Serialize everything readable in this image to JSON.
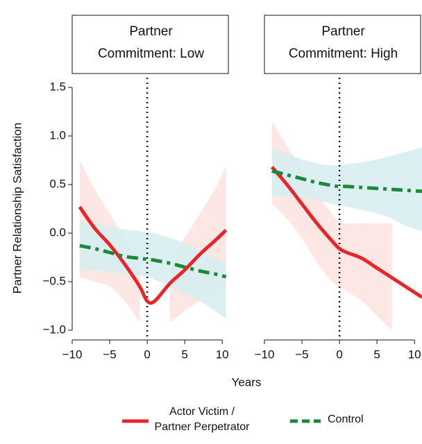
{
  "shared": {
    "y_label": "Partner Relationship Satisfaction",
    "x_label": "Years"
  },
  "chart_data": [
    {
      "type": "line",
      "title": [
        "Partner",
        "Commitment: Low"
      ],
      "xlim": [
        -10,
        11
      ],
      "ylim": [
        -1.1,
        1.6
      ],
      "xticks": [
        {
          "value": -10,
          "label": "−10"
        },
        {
          "value": -5,
          "label": "−5"
        },
        0,
        5,
        10
      ],
      "yticks": [
        {
          "value": -1,
          "label": "−1.0"
        },
        {
          "value": -0.5,
          "label": "−0.5"
        },
        {
          "value": 0,
          "label": "0.0"
        },
        {
          "value": 0.5,
          "label": "0.5"
        },
        {
          "value": 1,
          "label": "1.0"
        },
        {
          "value": 1.5,
          "label": "1.5"
        }
      ],
      "vline": 0,
      "x": [
        -9,
        -7,
        -5,
        -3,
        -1,
        0,
        1,
        3,
        5,
        7,
        9,
        10.5
      ],
      "series": [
        {
          "name": "Actor Victim / Partner Perpetrator",
          "color": "#e8262a",
          "band_color": "#fbe3e1",
          "dash": false,
          "values": [
            0.27,
            0.05,
            -0.12,
            -0.32,
            -0.55,
            -0.7,
            -0.7,
            -0.52,
            -0.38,
            -0.22,
            -0.08,
            0.03
          ],
          "upper": [
            0.75,
            0.45,
            0.2,
            -0.05,
            -0.3,
            null,
            null,
            -0.3,
            -0.05,
            0.2,
            0.45,
            0.68
          ],
          "lower": [
            -0.45,
            -0.5,
            -0.55,
            -0.7,
            -0.92,
            null,
            null,
            -0.92,
            -0.8,
            -0.7,
            -0.62,
            -0.55
          ]
        },
        {
          "name": "Control",
          "color": "#1a8a3a",
          "band_color": "#d6edf2",
          "dash": true,
          "values": [
            -0.13,
            -0.16,
            -0.2,
            -0.24,
            -0.26,
            -0.27,
            -0.28,
            -0.31,
            -0.35,
            -0.39,
            -0.42,
            -0.45
          ],
          "upper": [
            0.12,
            0.1,
            0.07,
            0.04,
            0.02,
            0.01,
            0.0,
            -0.05,
            -0.1,
            -0.18,
            -0.26,
            -0.3
          ],
          "lower": [
            -0.38,
            -0.38,
            -0.4,
            -0.42,
            -0.44,
            -0.45,
            -0.48,
            -0.55,
            -0.62,
            -0.7,
            -0.8,
            -0.88
          ]
        }
      ]
    },
    {
      "type": "line",
      "title": [
        "Partner",
        "Commitment: High"
      ],
      "xlim": [
        -10,
        11
      ],
      "ylim": [
        -1.1,
        1.6
      ],
      "xticks": [
        {
          "value": -10,
          "label": "−10"
        },
        {
          "value": -5,
          "label": "−5"
        },
        0,
        5,
        10
      ],
      "vline": 0,
      "x": [
        -9,
        -7,
        -5,
        -3,
        -1,
        0,
        1,
        3,
        5,
        7,
        9,
        11
      ],
      "series": [
        {
          "name": "Actor Victim / Partner Perpetrator",
          "color": "#e8262a",
          "band_color": "#fbe3e1",
          "dash": false,
          "values": [
            0.68,
            0.5,
            0.3,
            0.1,
            -0.08,
            -0.16,
            -0.2,
            -0.26,
            -0.36,
            -0.46,
            -0.56,
            -0.66
          ],
          "upper": [
            1.15,
            0.9,
            0.65,
            0.4,
            0.2,
            0.12,
            0.1,
            0.1,
            0.1,
            0.1,
            null,
            null
          ],
          "lower": [
            0.3,
            0.15,
            -0.05,
            -0.3,
            -0.5,
            -0.55,
            -0.6,
            -0.7,
            -0.85,
            -1.0,
            null,
            null
          ]
        },
        {
          "name": "Control",
          "color": "#1a8a3a",
          "band_color": "#d6edf2",
          "dash": true,
          "values": [
            0.64,
            0.6,
            0.56,
            0.52,
            0.49,
            0.48,
            0.48,
            0.47,
            0.46,
            0.45,
            0.44,
            0.43
          ],
          "upper": [
            0.88,
            0.82,
            0.76,
            0.72,
            0.7,
            0.7,
            0.71,
            0.73,
            0.76,
            0.8,
            0.84,
            0.88
          ],
          "lower": [
            0.38,
            0.38,
            0.36,
            0.34,
            0.3,
            0.28,
            0.27,
            0.24,
            0.2,
            0.15,
            0.07,
            0.02
          ]
        }
      ]
    }
  ]
}
